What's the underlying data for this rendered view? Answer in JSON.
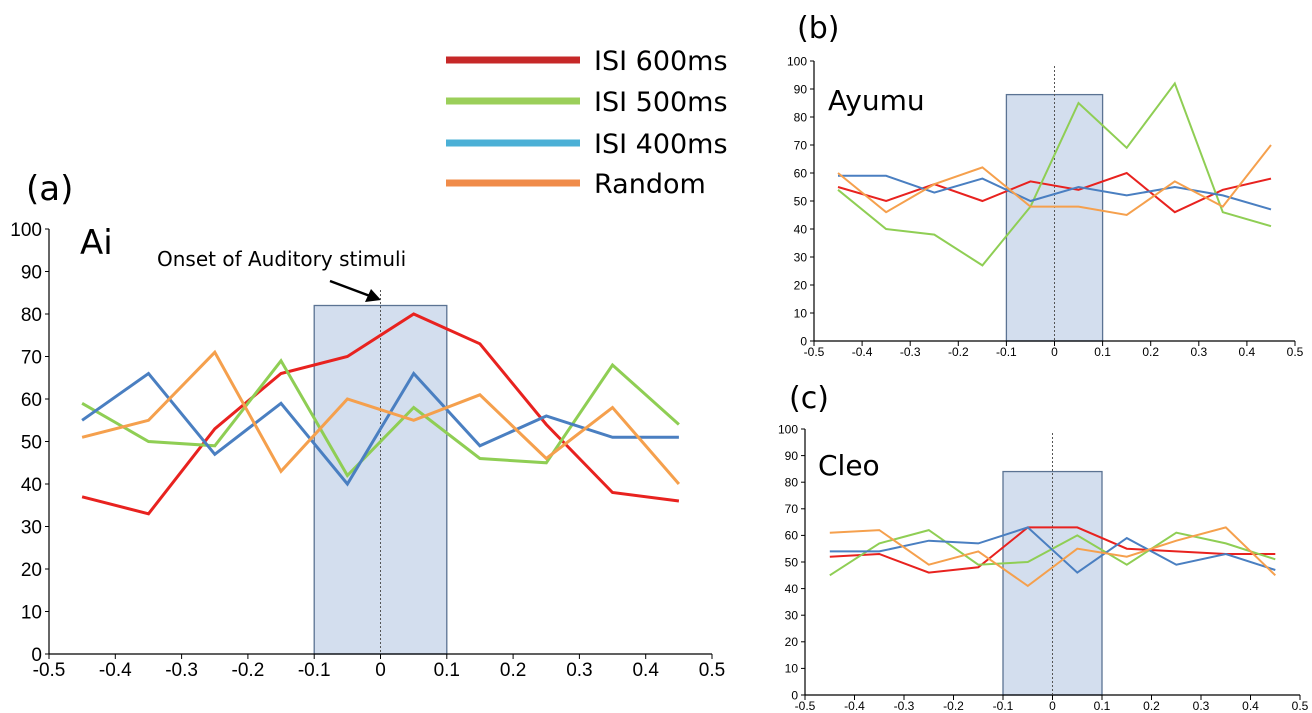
{
  "legend": {
    "entries": [
      {
        "label": "ISI 600ms",
        "color": "#c62828"
      },
      {
        "label": "ISI 500ms",
        "color": "#9bcf5a"
      },
      {
        "label": "ISI 400ms",
        "color": "#4bb0d6"
      },
      {
        "label": "Random",
        "color": "#f08c4a"
      }
    ]
  },
  "annotation": "Onset of Auditory stimuli",
  "chart_data": [
    {
      "type": "line",
      "panel_label": "(a)",
      "subject": "Ai",
      "x": [
        -0.45,
        -0.35,
        -0.25,
        -0.15,
        -0.05,
        0.05,
        0.15,
        0.25,
        0.35,
        0.45
      ],
      "xlim": [
        -0.5,
        0.5
      ],
      "ylim": [
        0,
        100
      ],
      "x_ticks": [
        "-0.5",
        "-0.4",
        "-0.3",
        "-0.2",
        "-0.1",
        "0",
        "0.1",
        "0.2",
        "0.3",
        "0.4",
        "0.5"
      ],
      "y_ticks": [
        "0",
        "10",
        "20",
        "30",
        "40",
        "50",
        "60",
        "70",
        "80",
        "90",
        "100"
      ],
      "shaded_region": {
        "x": [
          -0.1,
          0.1
        ],
        "y": [
          0,
          82
        ]
      },
      "onset_line_x": 0,
      "series": [
        {
          "name": "ISI 600ms",
          "color": "#e8221f",
          "values": [
            37,
            33,
            53,
            66,
            70,
            80,
            73,
            54,
            38,
            36
          ]
        },
        {
          "name": "ISI 500ms",
          "color": "#8fce54",
          "values": [
            59,
            50,
            49,
            69,
            42,
            58,
            46,
            45,
            68,
            54
          ]
        },
        {
          "name": "ISI 400ms",
          "color": "#4a7fc1",
          "values": [
            55,
            66,
            47,
            59,
            40,
            66,
            49,
            56,
            51,
            51
          ]
        },
        {
          "name": "Random",
          "color": "#f5a04d",
          "values": [
            51,
            55,
            71,
            43,
            60,
            55,
            61,
            46,
            58,
            40
          ]
        }
      ]
    },
    {
      "type": "line",
      "panel_label": "(b)",
      "subject": "Ayumu",
      "x": [
        -0.45,
        -0.35,
        -0.25,
        -0.15,
        -0.05,
        0.05,
        0.15,
        0.25,
        0.35,
        0.45
      ],
      "xlim": [
        -0.5,
        0.5
      ],
      "ylim": [
        0,
        100
      ],
      "x_ticks": [
        "-0.5",
        "-0.4",
        "-0.3",
        "-0.2",
        "-0.1",
        "0",
        "0.1",
        "0.2",
        "0.3",
        "0.4",
        "0.5"
      ],
      "y_ticks": [
        "0",
        "10",
        "20",
        "30",
        "40",
        "50",
        "60",
        "70",
        "80",
        "90",
        "100"
      ],
      "shaded_region": {
        "x": [
          -0.1,
          0.1
        ],
        "y": [
          0,
          88
        ]
      },
      "onset_line_x": 0,
      "series": [
        {
          "name": "ISI 600ms",
          "color": "#e8221f",
          "values": [
            55,
            50,
            56,
            50,
            57,
            54,
            60,
            46,
            54,
            58
          ]
        },
        {
          "name": "ISI 500ms",
          "color": "#8fce54",
          "values": [
            54,
            40,
            38,
            27,
            48,
            85,
            69,
            92,
            46,
            41
          ]
        },
        {
          "name": "ISI 400ms",
          "color": "#4a7fc1",
          "values": [
            59,
            59,
            53,
            58,
            50,
            55,
            52,
            55,
            52,
            47
          ]
        },
        {
          "name": "Random",
          "color": "#f5a04d",
          "values": [
            60,
            46,
            56,
            62,
            48,
            48,
            45,
            57,
            48,
            70
          ]
        }
      ]
    },
    {
      "type": "line",
      "panel_label": "(c)",
      "subject": "Cleo",
      "x": [
        -0.45,
        -0.35,
        -0.25,
        -0.15,
        -0.05,
        0.05,
        0.15,
        0.25,
        0.35,
        0.45
      ],
      "xlim": [
        -0.5,
        0.5
      ],
      "ylim": [
        0,
        100
      ],
      "x_ticks": [
        "-0.5",
        "-0.4",
        "-0.3",
        "-0.2",
        "-0.1",
        "0",
        "0.1",
        "0.2",
        "0.3",
        "0.4",
        "0.5"
      ],
      "y_ticks": [
        "0",
        "10",
        "20",
        "30",
        "40",
        "50",
        "60",
        "70",
        "80",
        "90",
        "100"
      ],
      "shaded_region": {
        "x": [
          -0.1,
          0.1
        ],
        "y": [
          0,
          84
        ]
      },
      "onset_line_x": 0,
      "series": [
        {
          "name": "ISI 600ms",
          "color": "#e8221f",
          "values": [
            52,
            53,
            46,
            48,
            63,
            63,
            55,
            54,
            53,
            53
          ]
        },
        {
          "name": "ISI 500ms",
          "color": "#8fce54",
          "values": [
            45,
            57,
            62,
            49,
            50,
            60,
            49,
            61,
            57,
            51
          ]
        },
        {
          "name": "ISI 400ms",
          "color": "#4a7fc1",
          "values": [
            54,
            54,
            58,
            57,
            63,
            46,
            59,
            49,
            53,
            47
          ]
        },
        {
          "name": "Random",
          "color": "#f5a04d",
          "values": [
            61,
            62,
            49,
            54,
            41,
            55,
            52,
            58,
            63,
            45
          ]
        }
      ]
    }
  ]
}
